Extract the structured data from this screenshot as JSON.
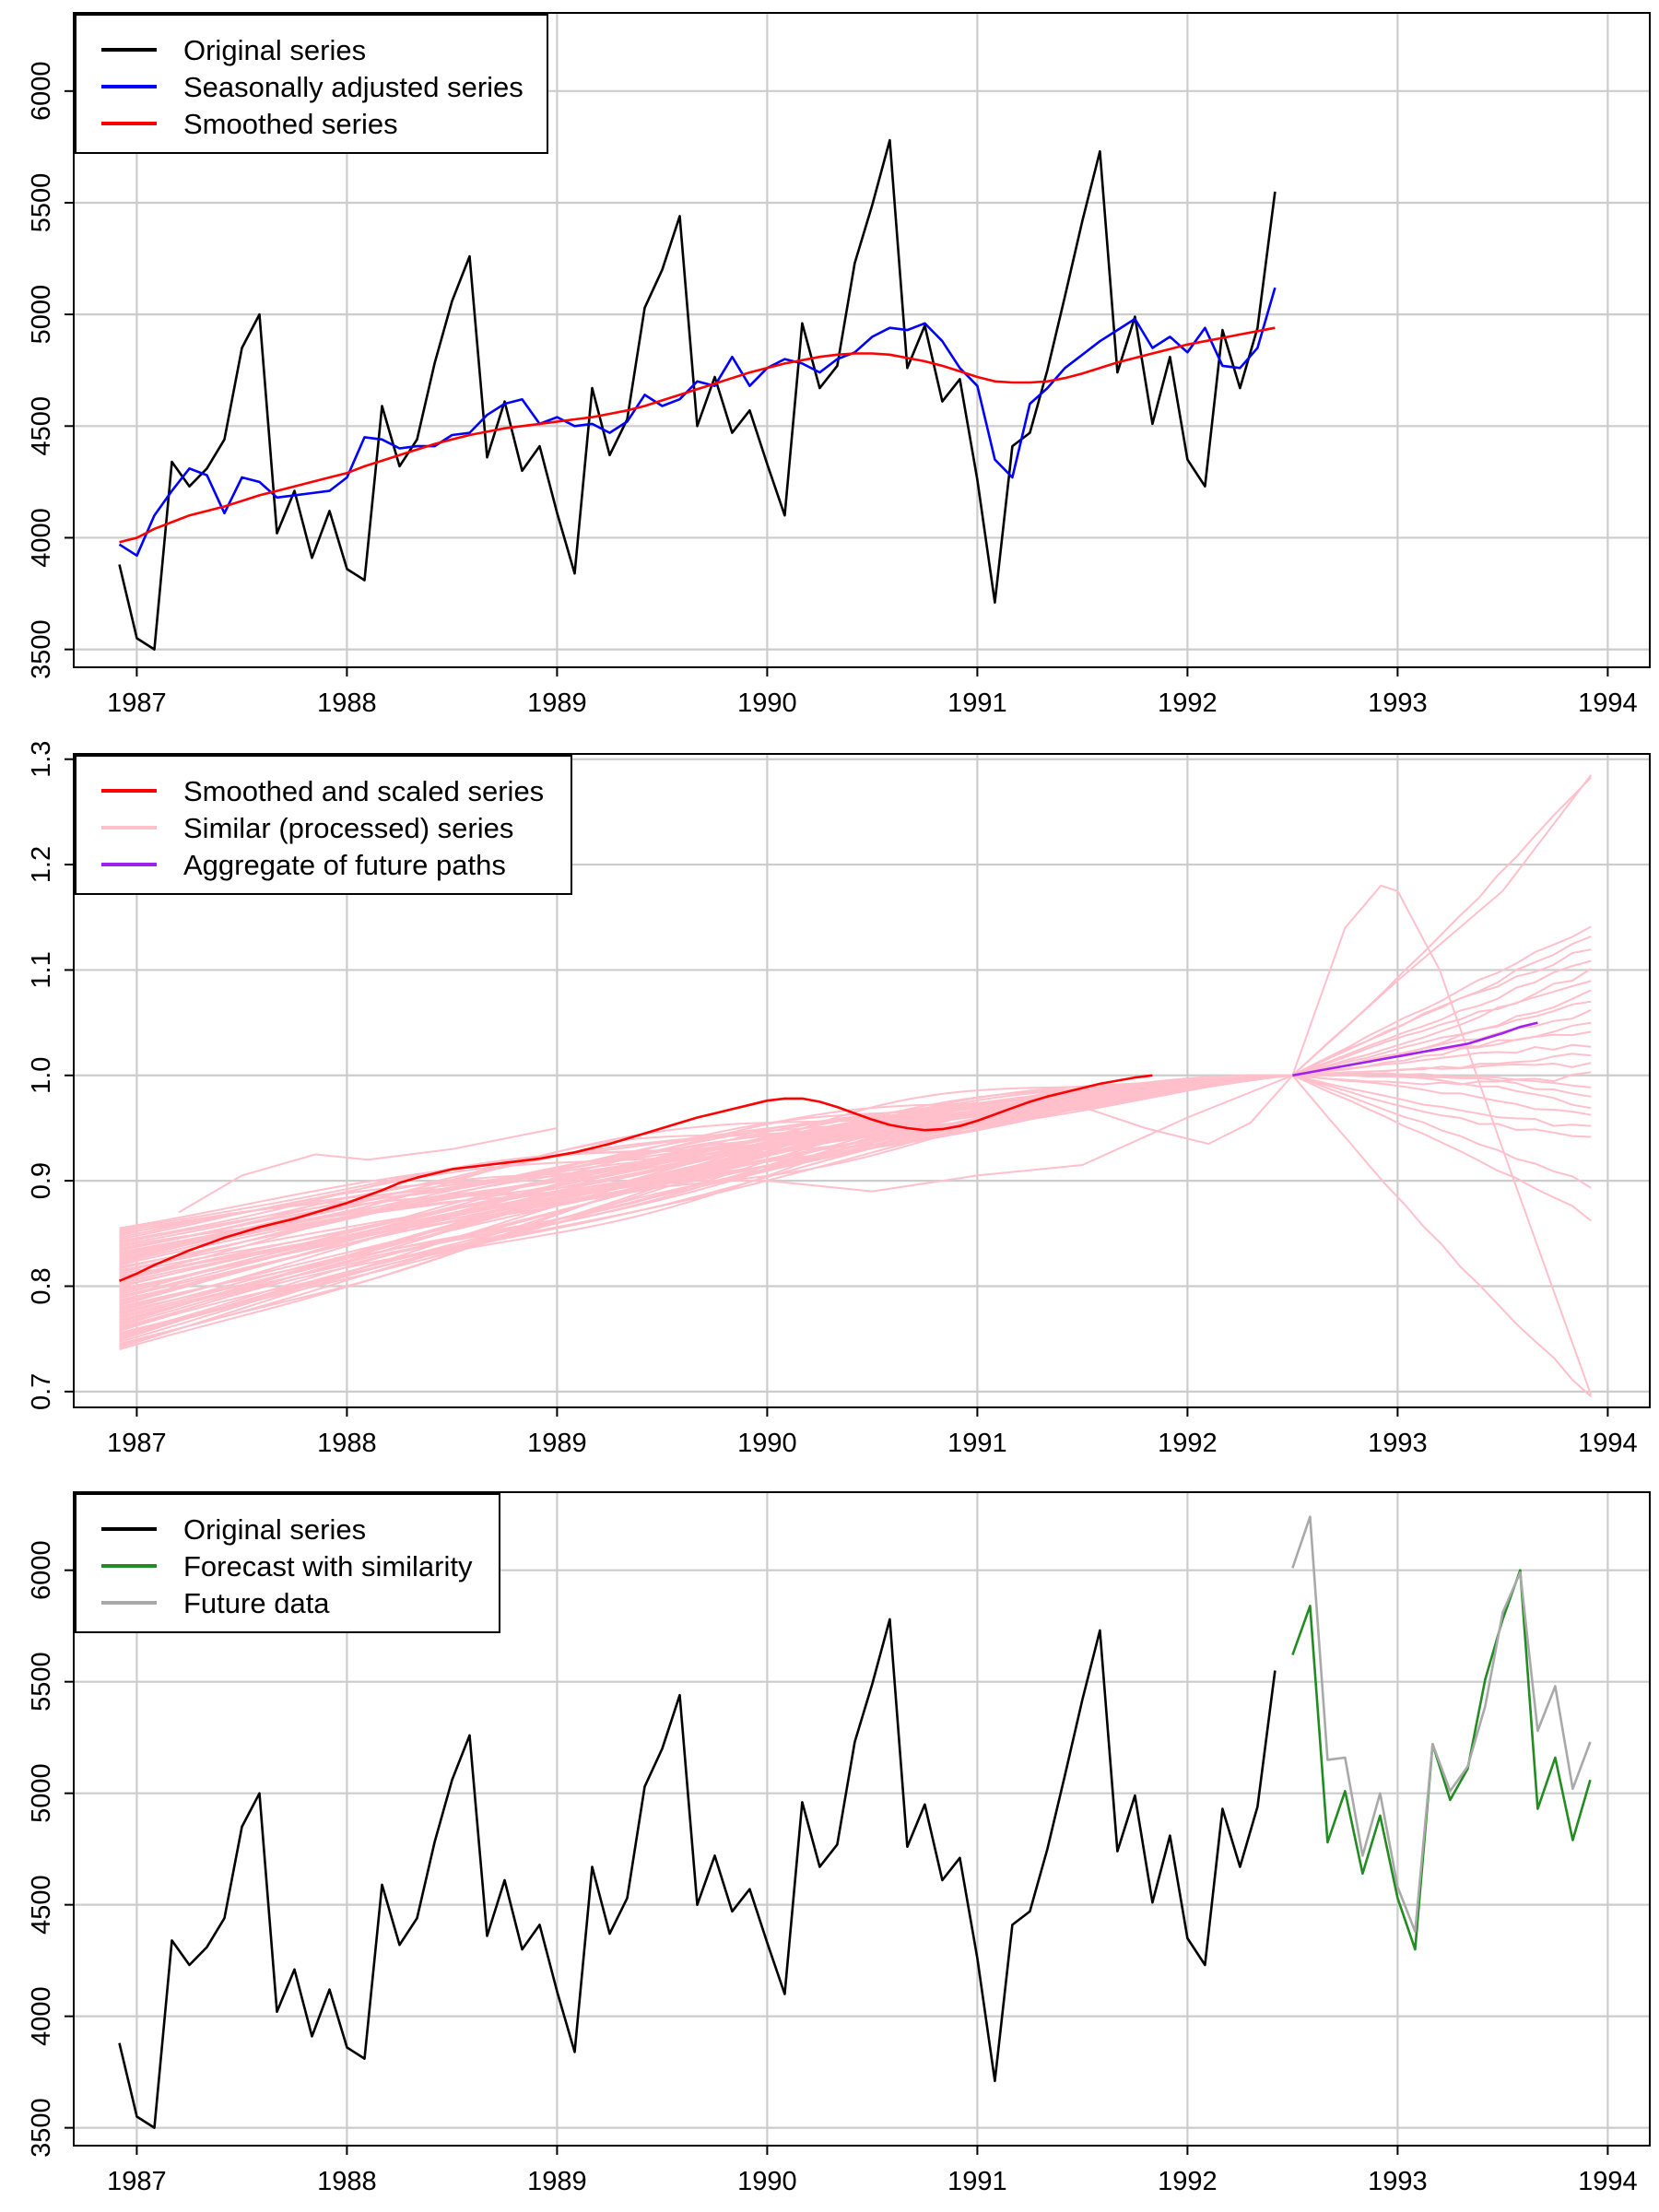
{
  "colors": {
    "grid": "#cccccc",
    "original": "#000000",
    "seasonally_adjusted": "#0000ff",
    "smoothed": "#ff0000",
    "similar": "#ffc0cb",
    "aggregate": "#a020f0",
    "forecast": "#228b22",
    "future": "#a9a9a9"
  },
  "chart_data": [
    {
      "type": "line",
      "x_ticks": [
        "1987",
        "1988",
        "1989",
        "1990",
        "1991",
        "1992",
        "1993",
        "1994"
      ],
      "y_ticks": [
        "3500",
        "4000",
        "4500",
        "5000",
        "5500",
        "6000"
      ],
      "xlim": [
        1986.7,
        1994.2
      ],
      "ylim": [
        3420,
        6350
      ],
      "grid": true,
      "legend_position": "top-left",
      "series": [
        {
          "name": "Original series",
          "color_key": "original",
          "start": 1986.917,
          "step": 0.08333,
          "values": [
            3880,
            3550,
            3500,
            4340,
            4230,
            4310,
            4440,
            4850,
            5000,
            4020,
            4210,
            3910,
            4120,
            3860,
            3810,
            4590,
            4320,
            4440,
            4780,
            5060,
            5260,
            4360,
            4610,
            4300,
            4410,
            4110,
            3840,
            4670,
            4370,
            4530,
            5030,
            5200,
            5440,
            4500,
            4720,
            4470,
            4570,
            4330,
            4100,
            4960,
            4670,
            4770,
            5230,
            5490,
            5780,
            4760,
            4950,
            4610,
            4710,
            4260,
            3710,
            4410,
            4470,
            4750,
            5080,
            5420,
            5730,
            4740,
            4990,
            4510,
            4810,
            4350,
            4230,
            4930,
            4670,
            4940,
            5550
          ]
        },
        {
          "name": "Seasonally adjusted series",
          "color_key": "seasonally_adjusted",
          "start": 1986.917,
          "step": 0.08333,
          "values": [
            3970,
            3920,
            4100,
            4210,
            4310,
            4280,
            4110,
            4270,
            4250,
            4180,
            4190,
            4200,
            4210,
            4270,
            4450,
            4440,
            4400,
            4410,
            4410,
            4460,
            4470,
            4550,
            4600,
            4620,
            4510,
            4540,
            4500,
            4510,
            4470,
            4520,
            4640,
            4590,
            4620,
            4700,
            4680,
            4810,
            4680,
            4760,
            4800,
            4780,
            4740,
            4800,
            4830,
            4900,
            4940,
            4930,
            4960,
            4880,
            4760,
            4680,
            4350,
            4270,
            4600,
            4670,
            4760,
            4820,
            4880,
            4930,
            4980,
            4850,
            4900,
            4830,
            4940,
            4770,
            4760,
            4850,
            5120
          ]
        },
        {
          "name": "Smoothed series",
          "color_key": "smoothed",
          "start": 1986.917,
          "step": 0.08333,
          "values": [
            3980,
            4000,
            4040,
            4070,
            4100,
            4120,
            4140,
            4165,
            4190,
            4210,
            4230,
            4250,
            4270,
            4290,
            4320,
            4345,
            4370,
            4395,
            4420,
            4440,
            4460,
            4475,
            4490,
            4500,
            4510,
            4520,
            4530,
            4540,
            4555,
            4570,
            4590,
            4615,
            4640,
            4665,
            4690,
            4715,
            4740,
            4760,
            4780,
            4795,
            4810,
            4820,
            4825,
            4825,
            4820,
            4805,
            4790,
            4770,
            4745,
            4720,
            4700,
            4695,
            4695,
            4700,
            4715,
            4735,
            4760,
            4785,
            4805,
            4825,
            4845,
            4865,
            4880,
            4895,
            4910,
            4925,
            4940
          ]
        }
      ]
    },
    {
      "type": "line",
      "x_ticks": [
        "1987",
        "1988",
        "1989",
        "1990",
        "1991",
        "1992",
        "1993",
        "1994"
      ],
      "y_ticks": [
        "0.7",
        "0.8",
        "0.9",
        "1.0",
        "1.1",
        "1.2",
        "1.3"
      ],
      "xlim": [
        1986.7,
        1994.2
      ],
      "ylim": [
        0.685,
        1.305
      ],
      "grid": true,
      "legend_position": "top-left",
      "legend": [
        {
          "label": "Smoothed and scaled series",
          "color_key": "smoothed"
        },
        {
          "label": "Similar (processed) series",
          "color_key": "similar"
        },
        {
          "label": "Aggregate of future paths",
          "color_key": "aggregate"
        }
      ],
      "similar_band": {
        "x_start": 1986.917,
        "x_end": 1992.5,
        "low_start": 0.74,
        "high_start": 0.855,
        "end_value": 1.0
      },
      "similar_future_endpoints": [
        1.285,
        1.14,
        1.13,
        1.12,
        1.11,
        1.1,
        1.09,
        1.08,
        1.07,
        1.06,
        1.05,
        1.04,
        1.03,
        1.02,
        1.01,
        1.0,
        0.99,
        0.98,
        0.97,
        0.96,
        0.95,
        0.94,
        0.895,
        0.865,
        0.697
      ],
      "similar_outliers": [
        {
          "x": [
            1992.5,
            1992.75,
            1992.92,
            1993.0,
            1993.2,
            1993.5,
            1993.92
          ],
          "y": [
            1.0,
            1.14,
            1.18,
            1.175,
            1.1,
            0.93,
            0.697
          ]
        },
        {
          "x": [
            1992.5,
            1993.0,
            1993.5,
            1993.92
          ],
          "y": [
            1.0,
            1.09,
            1.175,
            1.285
          ]
        },
        {
          "x": [
            1991.5,
            1991.8,
            1992.1,
            1992.3,
            1992.5
          ],
          "y": [
            0.97,
            0.95,
            0.935,
            0.955,
            1.0
          ]
        },
        {
          "x": [
            1989.5,
            1990.0,
            1990.5,
            1991.0,
            1991.5,
            1992.0,
            1992.5
          ],
          "y": [
            0.9,
            0.9,
            0.89,
            0.905,
            0.915,
            0.96,
            1.0
          ]
        },
        {
          "x": [
            1987.2,
            1987.5,
            1987.85,
            1988.1,
            1988.5,
            1989.0
          ],
          "y": [
            0.87,
            0.905,
            0.925,
            0.92,
            0.93,
            0.95
          ]
        }
      ],
      "series": [
        {
          "name": "Smoothed and scaled series",
          "color_key": "smoothed",
          "start": 1986.917,
          "step": 0.08333,
          "values": [
            0.805,
            0.812,
            0.82,
            0.827,
            0.834,
            0.84,
            0.846,
            0.851,
            0.856,
            0.86,
            0.864,
            0.869,
            0.874,
            0.879,
            0.885,
            0.891,
            0.898,
            0.903,
            0.907,
            0.911,
            0.913,
            0.915,
            0.917,
            0.919,
            0.921,
            0.924,
            0.927,
            0.931,
            0.935,
            0.94,
            0.945,
            0.95,
            0.955,
            0.96,
            0.964,
            0.968,
            0.972,
            0.976,
            0.978,
            0.978,
            0.975,
            0.97,
            0.964,
            0.958,
            0.953,
            0.95,
            0.948,
            0.949,
            0.952,
            0.957,
            0.963,
            0.969,
            0.975,
            0.98,
            0.984,
            0.988,
            0.992,
            0.995,
            0.998,
            1.0
          ]
        },
        {
          "name": "Aggregate of future paths",
          "color_key": "aggregate",
          "start": 1992.5,
          "step": 0.08333,
          "values": [
            1.0,
            1.003,
            1.006,
            1.009,
            1.012,
            1.015,
            1.018,
            1.021,
            1.024,
            1.027,
            1.03,
            1.035,
            1.04,
            1.046,
            1.05
          ]
        }
      ]
    },
    {
      "type": "line",
      "x_ticks": [
        "1987",
        "1988",
        "1989",
        "1990",
        "1991",
        "1992",
        "1993",
        "1994"
      ],
      "y_ticks": [
        "3500",
        "4000",
        "4500",
        "5000",
        "5500",
        "6000"
      ],
      "xlim": [
        1986.7,
        1994.2
      ],
      "ylim": [
        3420,
        6350
      ],
      "grid": true,
      "legend_position": "top-left",
      "series": [
        {
          "name": "Original series",
          "color_key": "original",
          "start": 1986.917,
          "step": 0.08333,
          "values": [
            3880,
            3550,
            3500,
            4340,
            4230,
            4310,
            4440,
            4850,
            5000,
            4020,
            4210,
            3910,
            4120,
            3860,
            3810,
            4590,
            4320,
            4440,
            4780,
            5060,
            5260,
            4360,
            4610,
            4300,
            4410,
            4110,
            3840,
            4670,
            4370,
            4530,
            5030,
            5200,
            5440,
            4500,
            4720,
            4470,
            4570,
            4330,
            4100,
            4960,
            4670,
            4770,
            5230,
            5490,
            5780,
            4760,
            4950,
            4610,
            4710,
            4260,
            3710,
            4410,
            4470,
            4750,
            5080,
            5420,
            5730,
            4740,
            4990,
            4510,
            4810,
            4350,
            4230,
            4930,
            4670,
            4940,
            5550
          ]
        },
        {
          "name": "Forecast with similarity",
          "color_key": "forecast",
          "start": 1992.5,
          "step": 0.08333,
          "values": [
            5620,
            5840,
            4780,
            5010,
            4640,
            4900,
            4530,
            4300,
            5220,
            4970,
            5110,
            5510,
            5780,
            6000,
            4930,
            5160,
            4790,
            5060
          ]
        },
        {
          "name": "Future data",
          "color_key": "future",
          "start": 1992.5,
          "step": 0.08333,
          "values": [
            6010,
            6240,
            5150,
            5160,
            4720,
            5000,
            4580,
            4380,
            5220,
            5010,
            5120,
            5390,
            5810,
            5990,
            5280,
            5480,
            5020,
            5230
          ]
        }
      ]
    }
  ]
}
